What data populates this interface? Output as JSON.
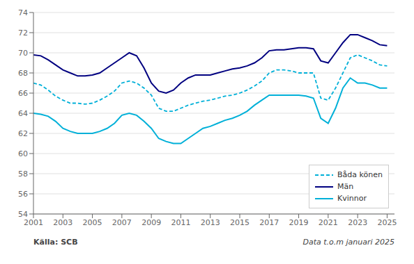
{
  "chart_data": {
    "type": "line",
    "x": [
      2001.0,
      2001.5,
      2002.0,
      2002.5,
      2003.0,
      2003.5,
      2004.0,
      2004.5,
      2005.0,
      2005.5,
      2006.0,
      2006.5,
      2007.0,
      2007.5,
      2008.0,
      2008.5,
      2009.0,
      2009.5,
      2010.0,
      2010.5,
      2011.0,
      2011.5,
      2012.0,
      2012.5,
      2013.0,
      2013.5,
      2014.0,
      2014.5,
      2015.0,
      2015.5,
      2016.0,
      2016.5,
      2017.0,
      2017.5,
      2018.0,
      2018.5,
      2019.0,
      2019.5,
      2020.0,
      2020.5,
      2021.0,
      2021.5,
      2022.0,
      2022.5,
      2023.0,
      2023.5,
      2024.0,
      2024.5,
      2025.0
    ],
    "series": [
      {
        "name": "Båda könen",
        "color": "#00b0d8",
        "line_style": "dashed",
        "values": [
          67.0,
          66.8,
          66.3,
          65.7,
          65.3,
          65.0,
          65.0,
          64.9,
          65.0,
          65.3,
          65.7,
          66.2,
          67.0,
          67.2,
          67.0,
          66.5,
          65.8,
          64.5,
          64.2,
          64.2,
          64.5,
          64.8,
          65.0,
          65.2,
          65.3,
          65.5,
          65.7,
          65.8,
          66.0,
          66.3,
          66.7,
          67.2,
          68.0,
          68.3,
          68.3,
          68.2,
          68.0,
          68.0,
          68.0,
          65.5,
          65.3,
          66.5,
          68.0,
          69.5,
          69.8,
          69.5,
          69.2,
          68.8,
          68.7
        ]
      },
      {
        "name": "Män",
        "color": "#000080",
        "line_style": "solid",
        "values": [
          69.8,
          69.7,
          69.3,
          68.8,
          68.3,
          68.0,
          67.7,
          67.7,
          67.8,
          68.0,
          68.5,
          69.0,
          69.5,
          70.0,
          69.7,
          68.5,
          67.0,
          66.2,
          66.0,
          66.3,
          67.0,
          67.5,
          67.8,
          67.8,
          67.8,
          68.0,
          68.2,
          68.4,
          68.5,
          68.7,
          69.0,
          69.5,
          70.2,
          70.3,
          70.3,
          70.4,
          70.5,
          70.5,
          70.4,
          69.2,
          69.0,
          70.0,
          71.0,
          71.8,
          71.8,
          71.5,
          71.2,
          70.8,
          70.7
        ]
      },
      {
        "name": "Kvinnor",
        "color": "#00b0d8",
        "line_style": "solid",
        "values": [
          64.0,
          63.9,
          63.7,
          63.2,
          62.5,
          62.2,
          62.0,
          62.0,
          62.0,
          62.2,
          62.5,
          63.0,
          63.8,
          64.0,
          63.8,
          63.2,
          62.5,
          61.5,
          61.2,
          61.0,
          61.0,
          61.5,
          62.0,
          62.5,
          62.7,
          63.0,
          63.3,
          63.5,
          63.8,
          64.2,
          64.8,
          65.3,
          65.8,
          65.8,
          65.8,
          65.8,
          65.8,
          65.7,
          65.5,
          63.5,
          63.0,
          64.5,
          66.5,
          67.5,
          67.0,
          67.0,
          66.8,
          66.5,
          66.5
        ]
      }
    ],
    "xlim": [
      2001,
      2025.5
    ],
    "xticks": [
      2001,
      2003,
      2005,
      2007,
      2009,
      2011,
      2013,
      2015,
      2017,
      2019,
      2021,
      2023,
      2025
    ],
    "ylim": [
      54,
      74
    ],
    "yticks": [
      54,
      56,
      58,
      60,
      62,
      64,
      66,
      68,
      70,
      72,
      74
    ],
    "grid": true,
    "legend": "lower right",
    "annotations": [
      "Källa: SCB",
      "Data t.o.m januari 2025"
    ]
  }
}
